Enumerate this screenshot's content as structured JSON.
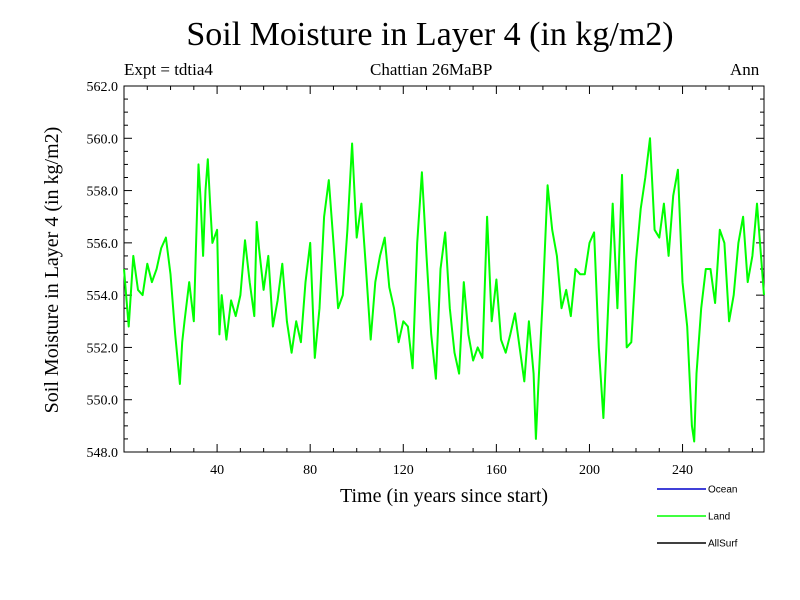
{
  "chart_data": {
    "type": "line",
    "title": "Soil Moisture in Layer 4 (in kg/m2)",
    "experiment": "Expt = tdtia4",
    "period": "Chattian  26MaBP",
    "season": "Ann",
    "xlabel": "Time (in years since start)",
    "ylabel": "Soil Moisture in Layer 4 (in kg/m2)",
    "xlim": [
      0,
      275
    ],
    "ylim": [
      548,
      562
    ],
    "x_ticks": [
      40,
      80,
      120,
      160,
      200,
      240
    ],
    "y_ticks": [
      "548.0",
      "550.0",
      "552.0",
      "554.0",
      "556.0",
      "558.0",
      "560.0",
      "562.0"
    ],
    "legend": [
      {
        "name": "Ocean",
        "color": "#0000cc"
      },
      {
        "name": "Land",
        "color": "#00ff00"
      },
      {
        "name": "AllSurf",
        "color": "#000000"
      }
    ],
    "series": [
      {
        "name": "Land",
        "color": "#00ff00",
        "x": [
          0,
          2,
          4,
          6,
          8,
          10,
          12,
          14,
          16,
          18,
          20,
          22,
          24,
          25,
          26,
          28,
          30,
          31,
          32,
          33,
          34,
          35,
          36,
          37,
          38,
          40,
          41,
          42,
          44,
          46,
          48,
          50,
          52,
          54,
          56,
          57,
          58,
          60,
          62,
          64,
          66,
          68,
          70,
          72,
          74,
          76,
          78,
          80,
          82,
          84,
          86,
          88,
          90,
          92,
          94,
          96,
          98,
          100,
          102,
          104,
          106,
          108,
          110,
          112,
          114,
          116,
          118,
          120,
          122,
          124,
          126,
          128,
          130,
          132,
          134,
          136,
          138,
          140,
          142,
          144,
          146,
          148,
          150,
          152,
          154,
          156,
          158,
          160,
          162,
          164,
          166,
          168,
          170,
          172,
          174,
          176,
          177,
          178,
          180,
          182,
          184,
          186,
          188,
          190,
          192,
          194,
          196,
          198,
          200,
          202,
          204,
          206,
          208,
          210,
          212,
          214,
          216,
          218,
          220,
          222,
          224,
          226,
          228,
          230,
          232,
          234,
          236,
          238,
          240,
          242,
          244,
          245,
          246,
          248,
          250,
          252,
          254,
          256,
          258,
          260,
          262,
          264,
          266,
          268,
          270,
          272,
          275
        ],
        "values": [
          555.0,
          552.8,
          555.5,
          554.2,
          554.0,
          555.2,
          554.5,
          555.0,
          555.8,
          556.2,
          554.8,
          552.5,
          550.6,
          552.2,
          553.0,
          554.5,
          553.0,
          556.0,
          559.0,
          557.5,
          555.5,
          558.0,
          559.2,
          557.5,
          556.0,
          556.5,
          552.5,
          554.0,
          552.3,
          553.8,
          553.2,
          554.0,
          556.1,
          554.5,
          553.2,
          556.8,
          555.8,
          554.2,
          555.5,
          552.8,
          553.8,
          555.2,
          553.0,
          551.8,
          553.0,
          552.2,
          554.5,
          556.0,
          551.6,
          553.5,
          557.0,
          558.4,
          556.0,
          553.5,
          554.0,
          556.5,
          559.8,
          556.2,
          557.5,
          555.0,
          552.3,
          554.5,
          555.5,
          556.2,
          554.3,
          553.5,
          552.2,
          553.0,
          552.8,
          551.2,
          556.0,
          558.7,
          555.5,
          552.5,
          550.8,
          555.0,
          556.4,
          553.5,
          551.8,
          551.0,
          554.5,
          552.5,
          551.5,
          552.0,
          551.6,
          557.0,
          553.0,
          554.6,
          552.3,
          551.8,
          552.5,
          553.3,
          552.0,
          550.7,
          553.0,
          551.0,
          548.5,
          550.5,
          554.0,
          558.2,
          556.5,
          555.5,
          553.5,
          554.2,
          553.2,
          555.0,
          554.8,
          554.8,
          556.0,
          556.4,
          552.0,
          549.3,
          553.5,
          557.5,
          553.5,
          558.6,
          552.0,
          552.2,
          555.3,
          557.3,
          558.5,
          560.0,
          556.5,
          556.2,
          557.5,
          555.5,
          557.8,
          558.8,
          554.5,
          552.8,
          549.0,
          548.4,
          551.0,
          553.5,
          555.0,
          555.0,
          553.7,
          556.5,
          556.0,
          553.0,
          554.0,
          556.0,
          557.0,
          554.5,
          555.5,
          557.5,
          554.0
        ]
      }
    ]
  }
}
